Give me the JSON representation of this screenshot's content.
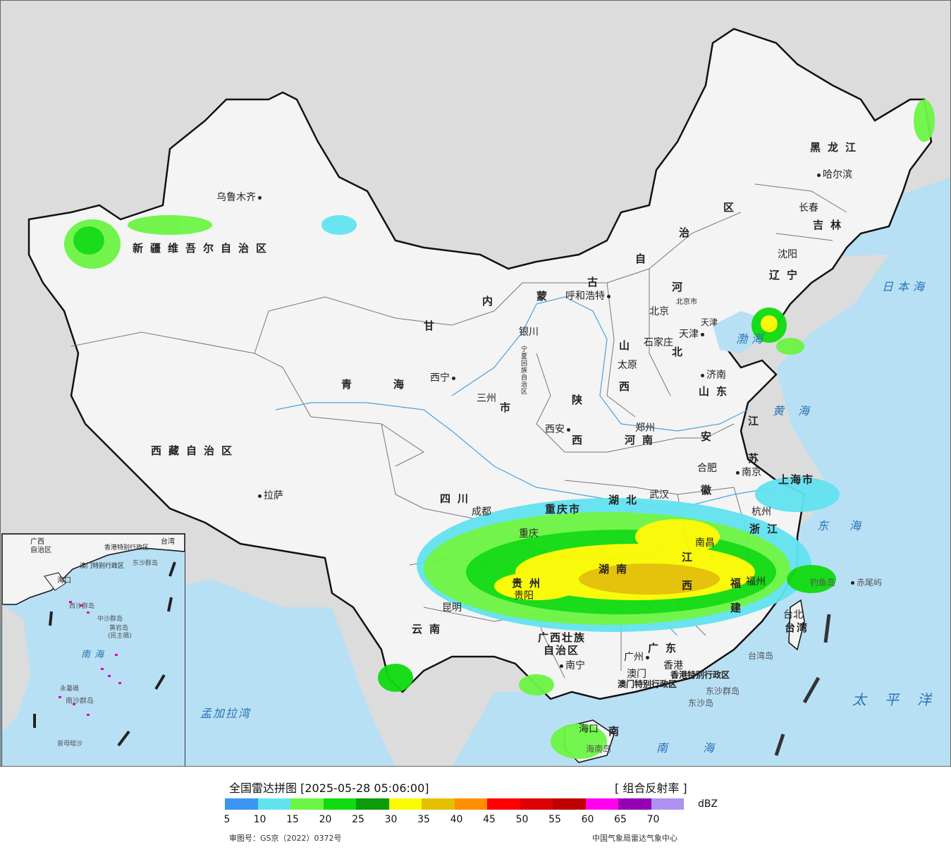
{
  "map": {
    "provinces": [
      {
        "id": "xinjiang",
        "label": "新疆维吾尔自治区"
      },
      {
        "id": "xizang",
        "label": "西藏自治区"
      },
      {
        "id": "qinghai-1",
        "label": "青"
      },
      {
        "id": "qinghai-2",
        "label": "海"
      },
      {
        "id": "gansu",
        "label": "甘"
      },
      {
        "id": "nmg-1",
        "label": "内"
      },
      {
        "id": "nmg-2",
        "label": "蒙"
      },
      {
        "id": "nmg-3",
        "label": "古"
      },
      {
        "id": "nmg-4",
        "label": "自"
      },
      {
        "id": "nmg-5",
        "label": "治"
      },
      {
        "id": "nmg-6",
        "label": "区"
      },
      {
        "id": "heilongjiang",
        "label": "黑龙江"
      },
      {
        "id": "jilin",
        "label": "吉林"
      },
      {
        "id": "liaoning",
        "label": "辽宁"
      },
      {
        "id": "hebei-1",
        "label": "河"
      },
      {
        "id": "hebei-2",
        "label": "北"
      },
      {
        "id": "shanxi-1",
        "label": "山"
      },
      {
        "id": "shanxi-2",
        "label": "西"
      },
      {
        "id": "shandong",
        "label": "山东"
      },
      {
        "id": "shaanxi-1",
        "label": "陕"
      },
      {
        "id": "shaanxi-2",
        "label": "西"
      },
      {
        "id": "henan",
        "label": "河南"
      },
      {
        "id": "jiangsu-1",
        "label": "江"
      },
      {
        "id": "jiangsu-2",
        "label": "苏"
      },
      {
        "id": "anhui-1",
        "label": "安"
      },
      {
        "id": "anhui-2",
        "label": "徽"
      },
      {
        "id": "sichuan",
        "label": "四川"
      },
      {
        "id": "hubei",
        "label": "湖北"
      },
      {
        "id": "zhejiang",
        "label": "浙江"
      },
      {
        "id": "hunan",
        "label": "湖南"
      },
      {
        "id": "jiangxi-1",
        "label": "江"
      },
      {
        "id": "jiangxi-2",
        "label": "西"
      },
      {
        "id": "guizhou",
        "label": "贵州"
      },
      {
        "id": "yunnan",
        "label": "云南"
      },
      {
        "id": "fujian-1",
        "label": "福"
      },
      {
        "id": "fujian-2",
        "label": "建"
      },
      {
        "id": "guangxi-1",
        "label": "广西壮族"
      },
      {
        "id": "guangxi-2",
        "label": "自治区"
      },
      {
        "id": "guangdong",
        "label": "广东"
      },
      {
        "id": "taiwan",
        "label": "台湾"
      },
      {
        "id": "hainan",
        "label": "南"
      },
      {
        "id": "chongqing",
        "label": "重庆市"
      },
      {
        "id": "shanghai",
        "label": "上海市"
      },
      {
        "id": "tianjin",
        "label": "天津"
      },
      {
        "id": "beijing",
        "label": "北京市"
      },
      {
        "id": "hk",
        "label": "香港特别行政区"
      },
      {
        "id": "mo",
        "label": "澳门特别行政区"
      },
      {
        "id": "ningxia",
        "label": "宁夏回族自治区"
      },
      {
        "id": "sanzhou",
        "label": "市"
      }
    ],
    "cities": [
      {
        "id": "urumqi",
        "label": "乌鲁木齐"
      },
      {
        "id": "lhasa",
        "label": "拉萨"
      },
      {
        "id": "xining",
        "label": "西宁"
      },
      {
        "id": "lanzhou",
        "label": "三州"
      },
      {
        "id": "yinchuan",
        "label": "银川"
      },
      {
        "id": "hohhot",
        "label": "呼和浩特"
      },
      {
        "id": "harbin",
        "label": "哈尔滨"
      },
      {
        "id": "changchun",
        "label": "长春"
      },
      {
        "id": "shenyang",
        "label": "沈阳"
      },
      {
        "id": "beijing",
        "label": "北京"
      },
      {
        "id": "tianjin",
        "label": "天津"
      },
      {
        "id": "shijiazhuang",
        "label": "石家庄"
      },
      {
        "id": "taiyuan",
        "label": "太原"
      },
      {
        "id": "jinan",
        "label": "济南"
      },
      {
        "id": "xian",
        "label": "西安"
      },
      {
        "id": "zhengzhou",
        "label": "郑州"
      },
      {
        "id": "hefei",
        "label": "合肥"
      },
      {
        "id": "nanjing",
        "label": "南京"
      },
      {
        "id": "chengdu",
        "label": "成都"
      },
      {
        "id": "chongqing",
        "label": "重庆"
      },
      {
        "id": "wuhan",
        "label": "武汉"
      },
      {
        "id": "hangzhou",
        "label": "杭州"
      },
      {
        "id": "nanchang",
        "label": "南昌"
      },
      {
        "id": "guiyang",
        "label": "贵阳"
      },
      {
        "id": "kunming",
        "label": "昆明"
      },
      {
        "id": "fuzhou",
        "label": "福州"
      },
      {
        "id": "taibei",
        "label": "台北"
      },
      {
        "id": "nanning",
        "label": "南宁"
      },
      {
        "id": "guangzhou",
        "label": "广州"
      },
      {
        "id": "aomen",
        "label": "澳门"
      },
      {
        "id": "xianggang",
        "label": "香港"
      },
      {
        "id": "haikou",
        "label": "海口"
      },
      {
        "id": "chiweiyu",
        "label": "赤尾屿"
      },
      {
        "id": "diaoyudao",
        "label": "钓鱼岛"
      },
      {
        "id": "taiwandao",
        "label": "台湾岛"
      },
      {
        "id": "dongsha",
        "label": "东沙群岛"
      },
      {
        "id": "dongshadao",
        "label": "东沙岛"
      },
      {
        "id": "hainandao",
        "label": "海南岛"
      }
    ],
    "seas": [
      {
        "id": "riben",
        "label": "日本海"
      },
      {
        "id": "bohai",
        "label": "渤海"
      },
      {
        "id": "huanghai",
        "label": "黄海"
      },
      {
        "id": "donghai",
        "label": "东海"
      },
      {
        "id": "taipingyang",
        "label": "太平洋"
      },
      {
        "id": "nanhai",
        "label": "南海"
      },
      {
        "id": "mengjiala",
        "label": "孟加拉湾"
      }
    ],
    "inset": {
      "labels": [
        {
          "id": "nanhai",
          "label": "南海"
        },
        {
          "id": "zhongsha",
          "label": "中沙群岛"
        },
        {
          "id": "huangyan",
          "label": "黄岩岛"
        },
        {
          "id": "minzhu",
          "label": "(民主礁)"
        },
        {
          "id": "nansha",
          "label": "南沙群岛"
        },
        {
          "id": "xisha",
          "label": "西沙群岛"
        },
        {
          "id": "yongshu",
          "label": "永暑礁"
        },
        {
          "id": "zengmu",
          "label": "曾母暗沙"
        },
        {
          "id": "haikou",
          "label": "海口"
        },
        {
          "id": "taiwan",
          "label": "台湾"
        },
        {
          "id": "dongsha",
          "label": "东沙群岛"
        },
        {
          "id": "hk",
          "label": "香港特别行政区"
        },
        {
          "id": "mo",
          "label": "澳门特别行政区"
        },
        {
          "id": "gx",
          "label": "广西"
        },
        {
          "id": "zzq",
          "label": "自治区"
        }
      ]
    },
    "colors": {
      "land": "#f4f4f4",
      "sea": "#b8e0f5",
      "foreign": "#dcdcdc",
      "river": "#4aa3df",
      "border": "#111111",
      "province_border": "#777777"
    }
  },
  "legend": {
    "title": "全国雷达拼图 [2025-05-28 05:06:00]",
    "product": "[ 组合反射率 ]",
    "unit": "dBZ",
    "thresholds": [
      "5",
      "10",
      "15",
      "20",
      "25",
      "30",
      "35",
      "40",
      "45",
      "50",
      "55",
      "60",
      "65",
      "70"
    ],
    "colors": [
      "#3a96f0",
      "#62e3f0",
      "#6cf544",
      "#0fdb0f",
      "#0b9b0b",
      "#fafa00",
      "#e5c000",
      "#ff8f00",
      "#ff0000",
      "#dc0000",
      "#c00000",
      "#ff00f0",
      "#9600b4",
      "#ad90f0"
    ],
    "approval": "审图号：GS京（2022）0372号",
    "source": "中国气象局雷达气象中心"
  }
}
